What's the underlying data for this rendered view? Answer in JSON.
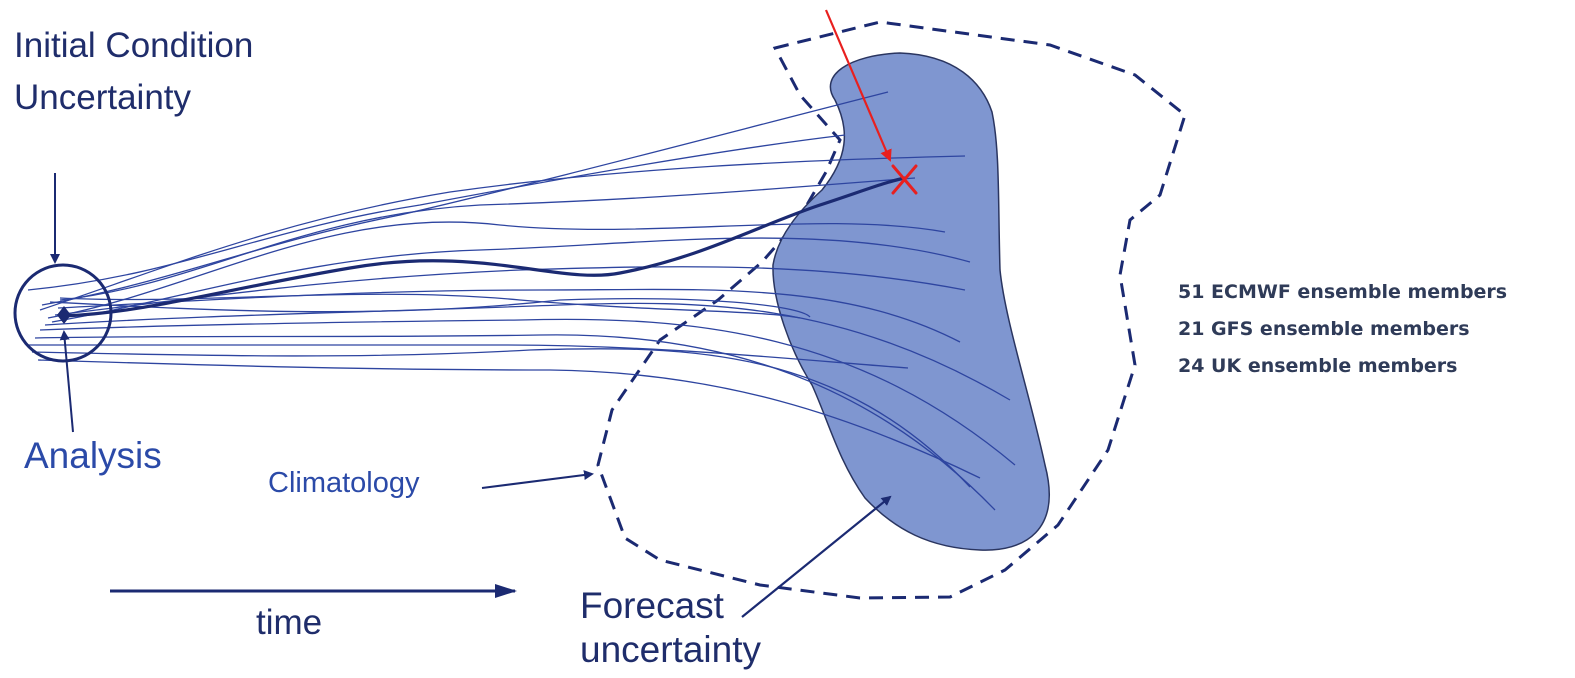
{
  "labels": {
    "initial_condition_line1": "Initial Condition",
    "initial_condition_line2": "Uncertainty",
    "analysis": "Analysis",
    "climatology": "Climatology",
    "time": "time",
    "forecast_line1": "Forecast",
    "forecast_line2": "uncertainty"
  },
  "ensembles": [
    "51 ECMWF ensemble members",
    "21 GFS ensemble members",
    "24 UK ensemble members"
  ],
  "colors": {
    "navy": "#1b2a72",
    "trajectory": "#2e45a0",
    "forecast_fill": "#7f96d0",
    "forecast_stroke": "#2a3560",
    "observation_marker": "#e8201f",
    "ensemble_text": "#2f3b58"
  },
  "icons": {
    "observation_marker": "x-mark",
    "analysis_marker": "diamond"
  }
}
